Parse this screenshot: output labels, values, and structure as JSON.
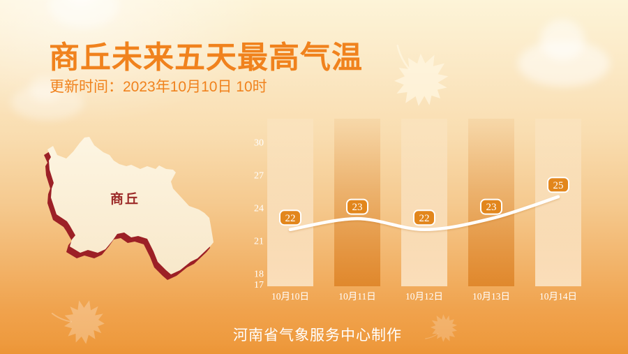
{
  "header": {
    "title": "商丘未来五天最高气温",
    "update_time": "更新时间：2023年10月10日 10时"
  },
  "map": {
    "label": "商丘"
  },
  "footer": {
    "credit": "河南省气象服务中心制作"
  },
  "chart_data": {
    "type": "line",
    "title": "商丘未来五天最高气温",
    "categories": [
      "10月10日",
      "10月11日",
      "10月12日",
      "10月13日",
      "10月14日"
    ],
    "series": [
      {
        "name": "最高气温",
        "values": [
          22,
          23,
          22,
          23,
          25
        ]
      }
    ],
    "yticks": [
      30,
      27,
      24,
      21,
      18,
      17
    ],
    "ylim": [
      17,
      32
    ],
    "grid": false,
    "legend": false,
    "bar_pattern": [
      "light",
      "dark",
      "light",
      "dark",
      "light"
    ]
  },
  "colors": {
    "accent": "#f0821d",
    "badge_fill": "#e2861c",
    "badge_border": "#ffffff",
    "line": "#ffffff",
    "axis_text": "#ffffff",
    "map_face": "#fbf0da",
    "map_shadow": "#9c2026",
    "map_label": "#9c2a28"
  }
}
